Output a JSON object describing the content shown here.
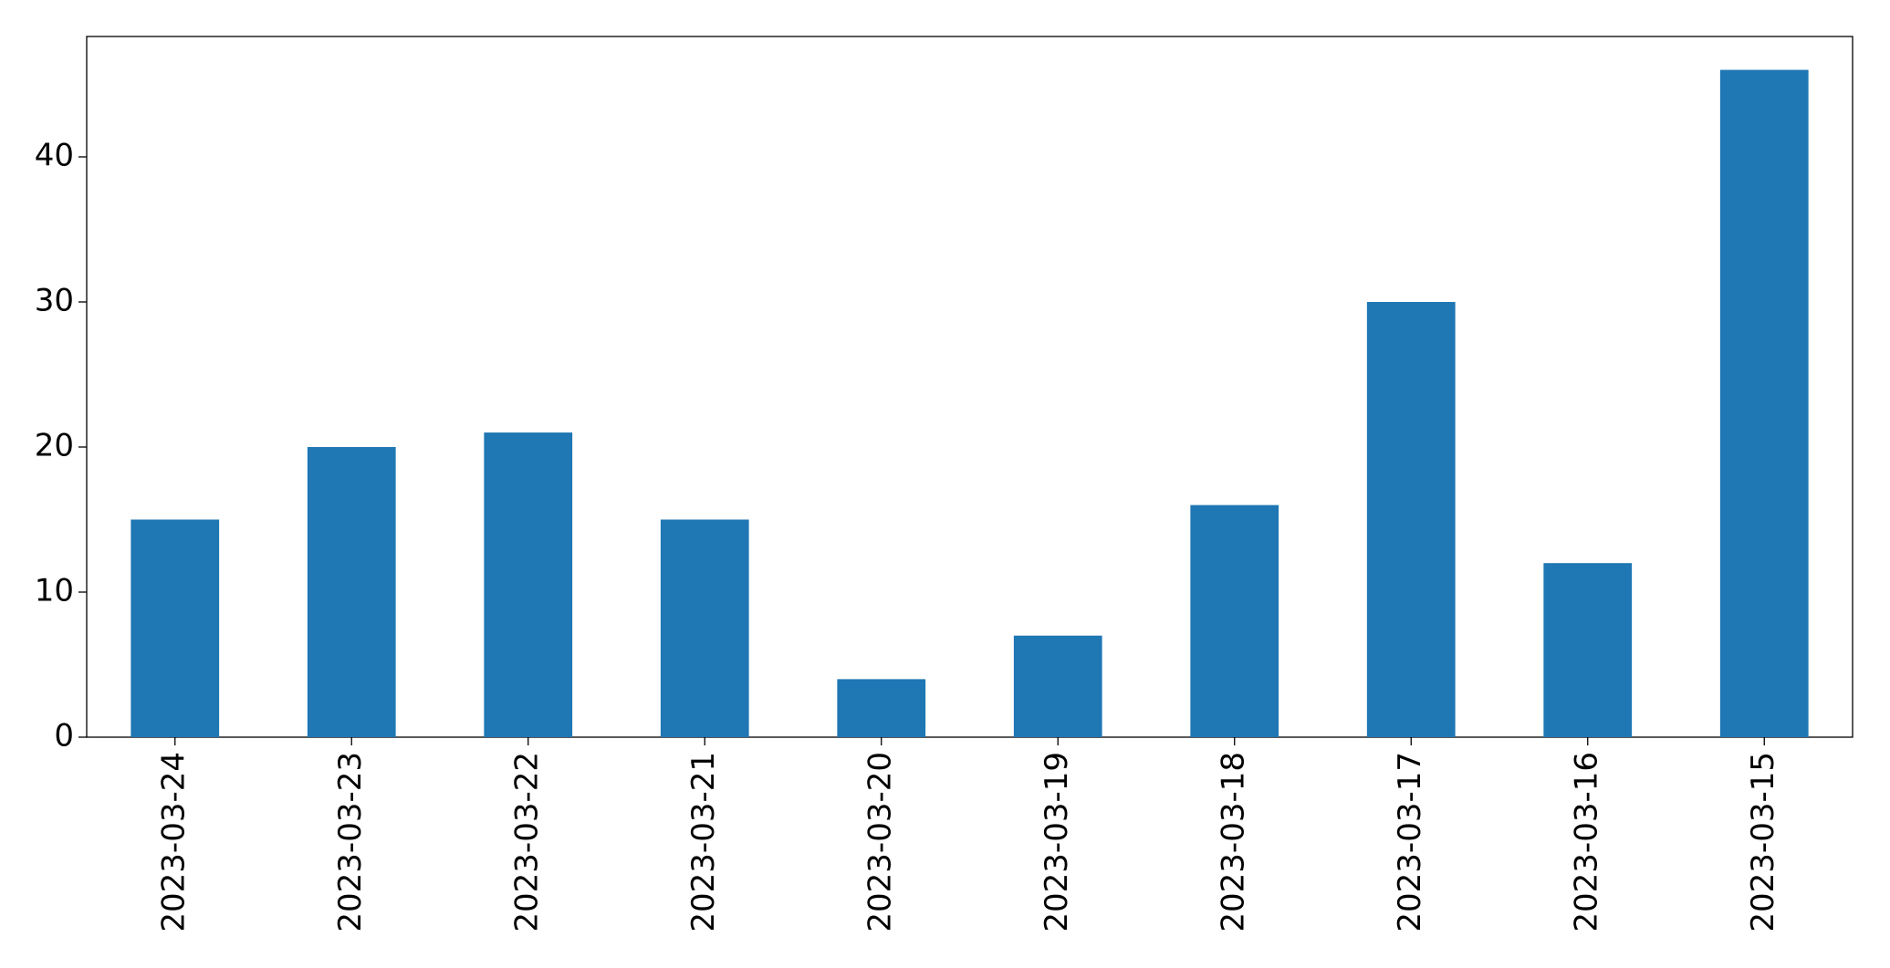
{
  "chart_data": {
    "type": "bar",
    "categories": [
      "2023-03-24",
      "2023-03-23",
      "2023-03-22",
      "2023-03-21",
      "2023-03-20",
      "2023-03-19",
      "2023-03-18",
      "2023-03-17",
      "2023-03-16",
      "2023-03-15"
    ],
    "values": [
      15,
      20,
      21,
      15,
      4,
      7,
      16,
      30,
      12,
      46
    ],
    "color": "#1f77b4",
    "ylim": [
      0,
      48.3
    ],
    "yticks": [
      0,
      10,
      20,
      30,
      40
    ],
    "grid": false
  }
}
